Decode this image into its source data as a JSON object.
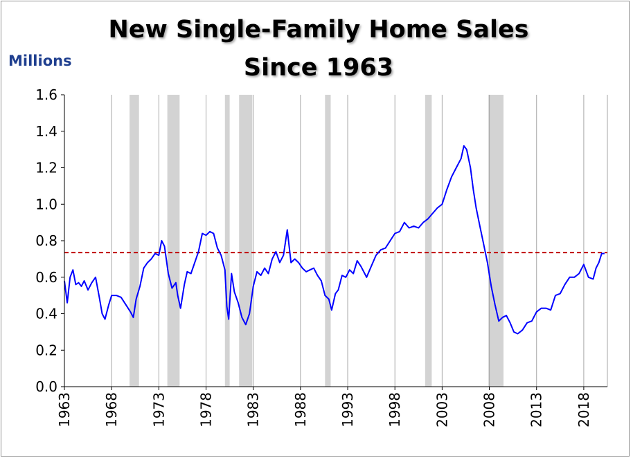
{
  "chart_data": {
    "type": "line",
    "title": [
      "New Single-Family Home Sales",
      "Since 1963"
    ],
    "ylabel": "Millions",
    "xlabel": "",
    "ylim": [
      0,
      1.6
    ],
    "xlim": [
      1963,
      2020.5
    ],
    "yticks": [
      "0.0",
      "0.2",
      "0.4",
      "0.6",
      "0.8",
      "1.0",
      "1.2",
      "1.4",
      "1.6"
    ],
    "xticks": [
      "1963",
      "1968",
      "1973",
      "1978",
      "1983",
      "1988",
      "1993",
      "1998",
      "2003",
      "2008",
      "2013",
      "2018"
    ],
    "grid": "vertical",
    "reference_line": {
      "value": 0.735,
      "style": "dashed",
      "color": "#c00000"
    },
    "recessions": [
      [
        1969.9,
        1970.9
      ],
      [
        1973.9,
        1975.2
      ],
      [
        1980.0,
        1980.5
      ],
      [
        1981.5,
        1982.9
      ],
      [
        1990.6,
        1991.2
      ],
      [
        2001.2,
        2001.9
      ],
      [
        2007.9,
        2009.5
      ]
    ],
    "series": [
      {
        "color": "#0000ff",
        "x": [
          1963.0,
          1963.3,
          1963.6,
          1963.9,
          1964.2,
          1964.5,
          1964.8,
          1965.1,
          1965.5,
          1965.9,
          1966.3,
          1966.7,
          1967.0,
          1967.3,
          1967.7,
          1968.0,
          1968.5,
          1969.0,
          1969.5,
          1970.0,
          1970.3,
          1970.6,
          1971.0,
          1971.4,
          1971.8,
          1972.2,
          1972.6,
          1973.0,
          1973.3,
          1973.6,
          1974.0,
          1974.4,
          1974.8,
          1975.0,
          1975.3,
          1975.7,
          1976.0,
          1976.4,
          1976.8,
          1977.2,
          1977.6,
          1978.0,
          1978.4,
          1978.8,
          1979.2,
          1979.6,
          1980.0,
          1980.2,
          1980.4,
          1980.7,
          1981.0,
          1981.4,
          1981.8,
          1982.2,
          1982.6,
          1983.0,
          1983.4,
          1983.8,
          1984.2,
          1984.6,
          1985.0,
          1985.4,
          1985.8,
          1986.2,
          1986.6,
          1987.0,
          1987.4,
          1987.8,
          1988.2,
          1988.6,
          1989.0,
          1989.4,
          1989.8,
          1990.2,
          1990.6,
          1991.0,
          1991.3,
          1991.7,
          1992.0,
          1992.4,
          1992.8,
          1993.2,
          1993.6,
          1994.0,
          1994.4,
          1994.8,
          1995.0,
          1995.5,
          1996.0,
          1996.5,
          1997.0,
          1997.5,
          1998.0,
          1998.5,
          1999.0,
          1999.5,
          2000.0,
          2000.5,
          2001.0,
          2001.5,
          2002.0,
          2002.5,
          2003.0,
          2003.5,
          2004.0,
          2004.5,
          2005.0,
          2005.3,
          2005.6,
          2006.0,
          2006.3,
          2006.6,
          2007.0,
          2007.4,
          2007.8,
          2008.2,
          2008.6,
          2009.0,
          2009.4,
          2009.8,
          2010.2,
          2010.6,
          2011.0,
          2011.5,
          2012.0,
          2012.5,
          2013.0,
          2013.5,
          2014.0,
          2014.5,
          2015.0,
          2015.5,
          2016.0,
          2016.5,
          2017.0,
          2017.5,
          2018.0,
          2018.5,
          2019.0,
          2019.3,
          2019.6,
          2019.9,
          2020.2
        ],
        "values": [
          0.58,
          0.46,
          0.6,
          0.64,
          0.56,
          0.57,
          0.55,
          0.58,
          0.53,
          0.57,
          0.6,
          0.49,
          0.4,
          0.37,
          0.45,
          0.5,
          0.5,
          0.49,
          0.45,
          0.41,
          0.38,
          0.48,
          0.55,
          0.65,
          0.68,
          0.7,
          0.73,
          0.72,
          0.8,
          0.77,
          0.62,
          0.54,
          0.57,
          0.5,
          0.43,
          0.56,
          0.63,
          0.62,
          0.68,
          0.74,
          0.84,
          0.83,
          0.85,
          0.84,
          0.76,
          0.72,
          0.64,
          0.44,
          0.37,
          0.62,
          0.52,
          0.46,
          0.38,
          0.34,
          0.4,
          0.55,
          0.63,
          0.61,
          0.65,
          0.62,
          0.7,
          0.74,
          0.68,
          0.72,
          0.86,
          0.68,
          0.7,
          0.68,
          0.65,
          0.63,
          0.64,
          0.65,
          0.61,
          0.58,
          0.5,
          0.48,
          0.42,
          0.51,
          0.53,
          0.61,
          0.6,
          0.64,
          0.62,
          0.69,
          0.66,
          0.62,
          0.6,
          0.66,
          0.72,
          0.75,
          0.76,
          0.8,
          0.84,
          0.85,
          0.9,
          0.87,
          0.88,
          0.87,
          0.9,
          0.92,
          0.95,
          0.98,
          1.0,
          1.08,
          1.15,
          1.2,
          1.25,
          1.32,
          1.3,
          1.2,
          1.08,
          0.98,
          0.88,
          0.78,
          0.68,
          0.55,
          0.45,
          0.36,
          0.38,
          0.39,
          0.35,
          0.3,
          0.29,
          0.31,
          0.35,
          0.36,
          0.41,
          0.43,
          0.43,
          0.42,
          0.5,
          0.51,
          0.56,
          0.6,
          0.6,
          0.62,
          0.67,
          0.6,
          0.59,
          0.65,
          0.68,
          0.73,
          0.73
        ]
      }
    ]
  }
}
